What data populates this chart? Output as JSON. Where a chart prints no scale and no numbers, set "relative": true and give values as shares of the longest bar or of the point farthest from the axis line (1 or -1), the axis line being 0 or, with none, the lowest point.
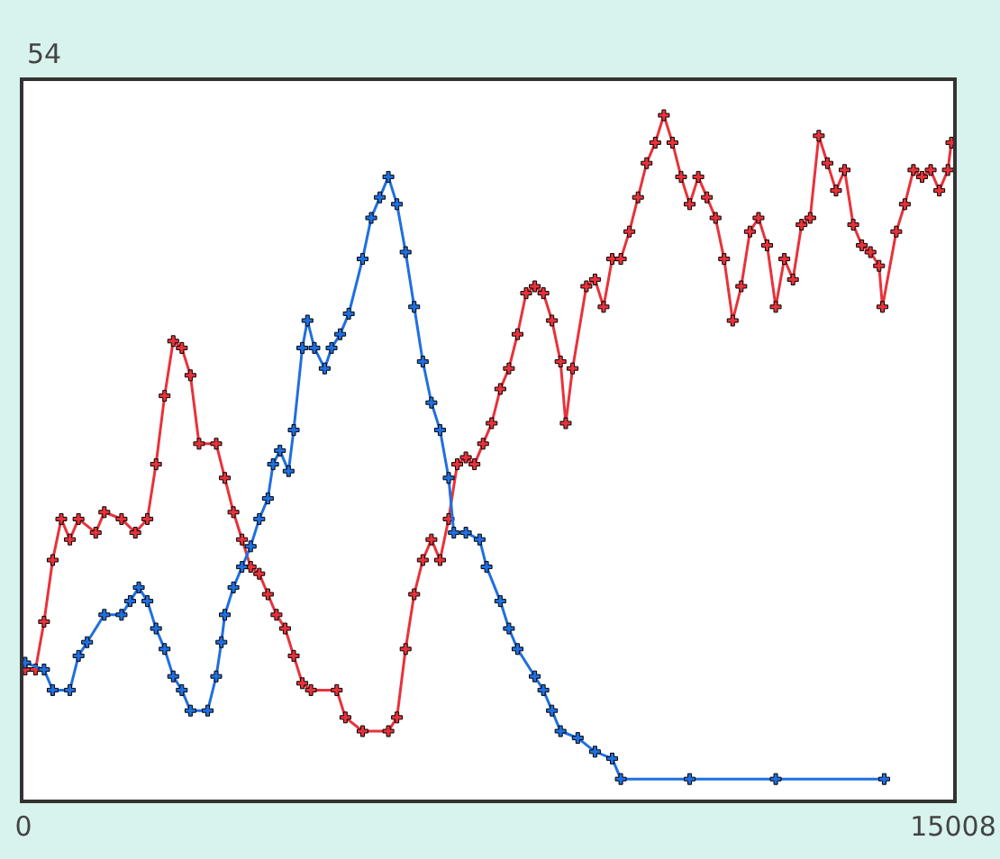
{
  "chart_data": {
    "type": "line",
    "relative": true,
    "marker": "cross",
    "line_style": "solid",
    "xlim": [
      0,
      15008
    ],
    "xticks": [
      0,
      15008
    ],
    "annotations": [
      "54"
    ],
    "series": [
      {
        "color": "#e8323a",
        "x": [
          28,
          195,
          333,
          472,
          611,
          750,
          889,
          1167,
          1306,
          1584,
          1806,
          2001,
          2140,
          2279,
          2418,
          2557,
          2696,
          2835,
          3112,
          3251,
          3390,
          3529,
          3668,
          3807,
          3946,
          4085,
          4224,
          4363,
          4502,
          4641,
          5058,
          5197,
          5475,
          5891,
          6030,
          6169,
          6308,
          6447,
          6586,
          6725,
          6864,
          7003,
          7142,
          7281,
          7420,
          7559,
          7698,
          7837,
          7976,
          8115,
          8254,
          8393,
          8532,
          8670,
          8754,
          8865,
          9087,
          9226,
          9365,
          9504,
          9643,
          9782,
          9921,
          10060,
          10199,
          10338,
          10477,
          10616,
          10755,
          10894,
          11033,
          11172,
          11311,
          11449,
          11588,
          11727,
          11866,
          12005,
          12144,
          12283,
          12422,
          12561,
          12700,
          12839,
          12978,
          13117,
          13256,
          13395,
          13534,
          13673,
          13812,
          13867,
          14090,
          14228,
          14367,
          14506,
          14645,
          14784,
          14923,
          14979
        ],
        "values": [
          0.19,
          0.19,
          0.26,
          0.35,
          0.41,
          0.38,
          0.41,
          0.39,
          0.42,
          0.41,
          0.39,
          0.41,
          0.49,
          0.59,
          0.67,
          0.66,
          0.62,
          0.52,
          0.52,
          0.47,
          0.42,
          0.38,
          0.34,
          0.33,
          0.3,
          0.27,
          0.25,
          0.21,
          0.17,
          0.16,
          0.16,
          0.12,
          0.1,
          0.1,
          0.12,
          0.22,
          0.3,
          0.35,
          0.38,
          0.35,
          0.41,
          0.49,
          0.5,
          0.49,
          0.52,
          0.55,
          0.6,
          0.63,
          0.68,
          0.74,
          0.75,
          0.74,
          0.7,
          0.64,
          0.55,
          0.63,
          0.75,
          0.76,
          0.72,
          0.79,
          0.79,
          0.83,
          0.88,
          0.93,
          0.96,
          1,
          0.96,
          0.91,
          0.87,
          0.91,
          0.88,
          0.85,
          0.79,
          0.7,
          0.75,
          0.83,
          0.85,
          0.81,
          0.72,
          0.79,
          0.76,
          0.84,
          0.85,
          0.97,
          0.93,
          0.89,
          0.92,
          0.84,
          0.81,
          0.8,
          0.78,
          0.72,
          0.83,
          0.87,
          0.92,
          0.91,
          0.92,
          0.89,
          0.92,
          0.96
        ]
      },
      {
        "color": "#1f6fe0",
        "x": [
          28,
          333,
          472,
          750,
          889,
          1028,
          1306,
          1584,
          1723,
          1862,
          2001,
          2140,
          2279,
          2418,
          2557,
          2696,
          2974,
          3112,
          3196,
          3251,
          3390,
          3529,
          3668,
          3807,
          3946,
          4030,
          4141,
          4280,
          4363,
          4502,
          4585,
          4697,
          4863,
          4974,
          5113,
          5252,
          5475,
          5614,
          5753,
          5891,
          6030,
          6169,
          6308,
          6447,
          6586,
          6725,
          6864,
          6948,
          7142,
          7364,
          7476,
          7698,
          7837,
          7976,
          8254,
          8393,
          8532,
          8670,
          8948,
          9226,
          9504,
          9643,
          10755,
          12144,
          13895
        ],
        "values": [
          0.2,
          0.19,
          0.16,
          0.16,
          0.21,
          0.23,
          0.27,
          0.27,
          0.29,
          0.31,
          0.29,
          0.25,
          0.22,
          0.18,
          0.16,
          0.13,
          0.13,
          0.18,
          0.23,
          0.27,
          0.31,
          0.34,
          0.37,
          0.41,
          0.44,
          0.49,
          0.51,
          0.48,
          0.54,
          0.66,
          0.7,
          0.66,
          0.63,
          0.66,
          0.68,
          0.71,
          0.79,
          0.85,
          0.88,
          0.91,
          0.87,
          0.8,
          0.72,
          0.64,
          0.58,
          0.54,
          0.47,
          0.39,
          0.39,
          0.38,
          0.34,
          0.29,
          0.25,
          0.22,
          0.18,
          0.16,
          0.13,
          0.1,
          0.09,
          0.07,
          0.06,
          0.03,
          0.03,
          0.03,
          0.03
        ]
      }
    ]
  }
}
